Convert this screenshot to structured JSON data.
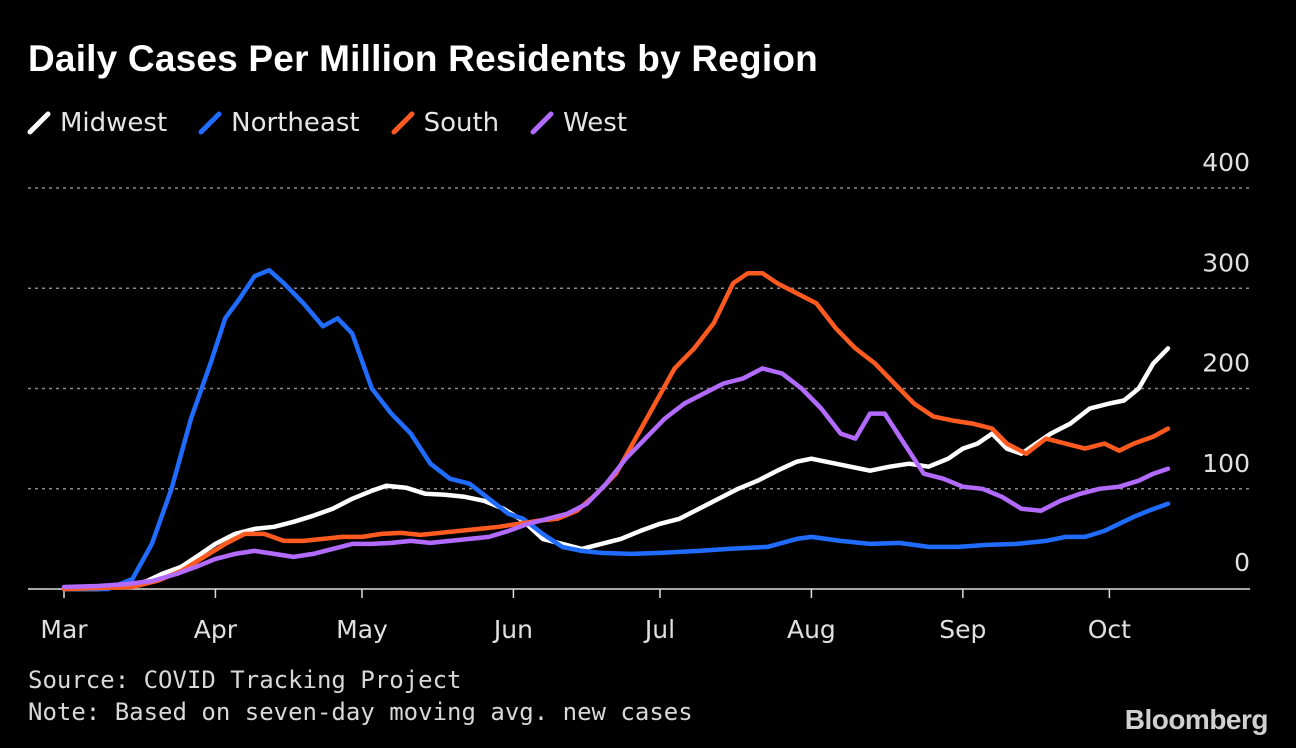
{
  "chart_data": {
    "type": "line",
    "title": "Daily Cases Per Million Residents by Region",
    "xlabel": "",
    "ylabel": "",
    "x_axis": {
      "start": "2020-03-01",
      "end": "2020-10-13",
      "ticks": [
        "Mar",
        "Apr",
        "May",
        "Jun",
        "Jul",
        "Aug",
        "Sep",
        "Oct"
      ],
      "tick_dates": [
        "2020-03-01",
        "2020-04-01",
        "2020-05-01",
        "2020-06-01",
        "2020-07-01",
        "2020-08-01",
        "2020-09-01",
        "2020-10-01"
      ]
    },
    "y_axis": {
      "ylim": [
        0,
        400
      ],
      "ticks": [
        0,
        100,
        200,
        300,
        400
      ],
      "position": "right",
      "grid": "dotted"
    },
    "legend": {
      "placement": "top-left"
    },
    "series": [
      {
        "name": "Midwest",
        "color": "#ffffff",
        "points": [
          [
            "2020-03-01",
            0
          ],
          [
            "2020-03-08",
            0
          ],
          [
            "2020-03-15",
            4
          ],
          [
            "2020-03-18",
            8
          ],
          [
            "2020-03-21",
            15
          ],
          [
            "2020-03-25",
            22
          ],
          [
            "2020-03-29",
            35
          ],
          [
            "2020-04-01",
            45
          ],
          [
            "2020-04-05",
            55
          ],
          [
            "2020-04-09",
            60
          ],
          [
            "2020-04-13",
            62
          ],
          [
            "2020-04-17",
            67
          ],
          [
            "2020-04-21",
            73
          ],
          [
            "2020-04-25",
            80
          ],
          [
            "2020-04-29",
            90
          ],
          [
            "2020-05-03",
            98
          ],
          [
            "2020-05-06",
            103
          ],
          [
            "2020-05-10",
            101
          ],
          [
            "2020-05-14",
            95
          ],
          [
            "2020-05-18",
            94
          ],
          [
            "2020-05-22",
            92
          ],
          [
            "2020-05-26",
            88
          ],
          [
            "2020-05-30",
            80
          ],
          [
            "2020-06-03",
            68
          ],
          [
            "2020-06-07",
            50
          ],
          [
            "2020-06-11",
            45
          ],
          [
            "2020-06-15",
            40
          ],
          [
            "2020-06-19",
            45
          ],
          [
            "2020-06-23",
            50
          ],
          [
            "2020-06-27",
            58
          ],
          [
            "2020-07-01",
            65
          ],
          [
            "2020-07-05",
            70
          ],
          [
            "2020-07-09",
            80
          ],
          [
            "2020-07-13",
            90
          ],
          [
            "2020-07-17",
            100
          ],
          [
            "2020-07-21",
            108
          ],
          [
            "2020-07-25",
            118
          ],
          [
            "2020-07-29",
            127
          ],
          [
            "2020-08-01",
            130
          ],
          [
            "2020-08-05",
            126
          ],
          [
            "2020-08-09",
            122
          ],
          [
            "2020-08-13",
            118
          ],
          [
            "2020-08-17",
            122
          ],
          [
            "2020-08-21",
            125
          ],
          [
            "2020-08-25",
            122
          ],
          [
            "2020-08-29",
            130
          ],
          [
            "2020-09-01",
            140
          ],
          [
            "2020-09-04",
            145
          ],
          [
            "2020-09-07",
            155
          ],
          [
            "2020-09-10",
            140
          ],
          [
            "2020-09-13",
            135
          ],
          [
            "2020-09-16",
            145
          ],
          [
            "2020-09-19",
            155
          ],
          [
            "2020-09-23",
            165
          ],
          [
            "2020-09-27",
            180
          ],
          [
            "2020-10-01",
            185
          ],
          [
            "2020-10-04",
            188
          ],
          [
            "2020-10-07",
            200
          ],
          [
            "2020-10-10",
            225
          ],
          [
            "2020-10-13",
            240
          ]
        ]
      },
      {
        "name": "Northeast",
        "color": "#1f6cff",
        "points": [
          [
            "2020-03-01",
            0
          ],
          [
            "2020-03-10",
            0
          ],
          [
            "2020-03-15",
            10
          ],
          [
            "2020-03-19",
            45
          ],
          [
            "2020-03-23",
            100
          ],
          [
            "2020-03-27",
            170
          ],
          [
            "2020-03-31",
            225
          ],
          [
            "2020-04-03",
            270
          ],
          [
            "2020-04-06",
            290
          ],
          [
            "2020-04-09",
            312
          ],
          [
            "2020-04-12",
            318
          ],
          [
            "2020-04-15",
            305
          ],
          [
            "2020-04-19",
            285
          ],
          [
            "2020-04-23",
            262
          ],
          [
            "2020-04-26",
            270
          ],
          [
            "2020-04-29",
            255
          ],
          [
            "2020-05-03",
            200
          ],
          [
            "2020-05-07",
            175
          ],
          [
            "2020-05-11",
            155
          ],
          [
            "2020-05-15",
            125
          ],
          [
            "2020-05-19",
            110
          ],
          [
            "2020-05-23",
            105
          ],
          [
            "2020-05-27",
            90
          ],
          [
            "2020-05-31",
            75
          ],
          [
            "2020-06-03",
            70
          ],
          [
            "2020-06-07",
            55
          ],
          [
            "2020-06-11",
            42
          ],
          [
            "2020-06-15",
            38
          ],
          [
            "2020-06-19",
            36
          ],
          [
            "2020-06-25",
            35
          ],
          [
            "2020-07-01",
            36
          ],
          [
            "2020-07-09",
            38
          ],
          [
            "2020-07-15",
            40
          ],
          [
            "2020-07-23",
            42
          ],
          [
            "2020-07-29",
            50
          ],
          [
            "2020-08-01",
            52
          ],
          [
            "2020-08-07",
            48
          ],
          [
            "2020-08-13",
            45
          ],
          [
            "2020-08-19",
            46
          ],
          [
            "2020-08-25",
            42
          ],
          [
            "2020-08-31",
            42
          ],
          [
            "2020-09-06",
            44
          ],
          [
            "2020-09-12",
            45
          ],
          [
            "2020-09-18",
            48
          ],
          [
            "2020-09-22",
            52
          ],
          [
            "2020-09-26",
            52
          ],
          [
            "2020-09-30",
            58
          ],
          [
            "2020-10-03",
            65
          ],
          [
            "2020-10-06",
            72
          ],
          [
            "2020-10-09",
            78
          ],
          [
            "2020-10-13",
            85
          ]
        ]
      },
      {
        "name": "South",
        "color": "#ff5a1f",
        "points": [
          [
            "2020-03-01",
            0
          ],
          [
            "2020-03-15",
            2
          ],
          [
            "2020-03-20",
            8
          ],
          [
            "2020-03-25",
            18
          ],
          [
            "2020-03-29",
            30
          ],
          [
            "2020-04-03",
            45
          ],
          [
            "2020-04-07",
            55
          ],
          [
            "2020-04-11",
            55
          ],
          [
            "2020-04-15",
            48
          ],
          [
            "2020-04-19",
            48
          ],
          [
            "2020-04-23",
            50
          ],
          [
            "2020-04-27",
            52
          ],
          [
            "2020-05-01",
            52
          ],
          [
            "2020-05-05",
            55
          ],
          [
            "2020-05-09",
            56
          ],
          [
            "2020-05-13",
            54
          ],
          [
            "2020-05-17",
            56
          ],
          [
            "2020-05-21",
            58
          ],
          [
            "2020-05-25",
            60
          ],
          [
            "2020-05-29",
            62
          ],
          [
            "2020-06-02",
            65
          ],
          [
            "2020-06-06",
            68
          ],
          [
            "2020-06-10",
            70
          ],
          [
            "2020-06-14",
            78
          ],
          [
            "2020-06-18",
            95
          ],
          [
            "2020-06-22",
            115
          ],
          [
            "2020-06-26",
            150
          ],
          [
            "2020-06-30",
            185
          ],
          [
            "2020-07-04",
            220
          ],
          [
            "2020-07-08",
            240
          ],
          [
            "2020-07-12",
            265
          ],
          [
            "2020-07-16",
            305
          ],
          [
            "2020-07-19",
            315
          ],
          [
            "2020-07-22",
            315
          ],
          [
            "2020-07-25",
            305
          ],
          [
            "2020-07-29",
            295
          ],
          [
            "2020-08-02",
            285
          ],
          [
            "2020-08-06",
            260
          ],
          [
            "2020-08-10",
            240
          ],
          [
            "2020-08-14",
            225
          ],
          [
            "2020-08-18",
            205
          ],
          [
            "2020-08-22",
            185
          ],
          [
            "2020-08-26",
            172
          ],
          [
            "2020-08-30",
            168
          ],
          [
            "2020-09-03",
            165
          ],
          [
            "2020-09-07",
            160
          ],
          [
            "2020-09-10",
            145
          ],
          [
            "2020-09-14",
            135
          ],
          [
            "2020-09-18",
            150
          ],
          [
            "2020-09-22",
            145
          ],
          [
            "2020-09-26",
            140
          ],
          [
            "2020-09-30",
            145
          ],
          [
            "2020-10-03",
            138
          ],
          [
            "2020-10-06",
            145
          ],
          [
            "2020-10-10",
            152
          ],
          [
            "2020-10-13",
            160
          ]
        ]
      },
      {
        "name": "West",
        "color": "#b36bff",
        "points": [
          [
            "2020-03-01",
            2
          ],
          [
            "2020-03-08",
            3
          ],
          [
            "2020-03-14",
            5
          ],
          [
            "2020-03-19",
            8
          ],
          [
            "2020-03-24",
            15
          ],
          [
            "2020-03-28",
            22
          ],
          [
            "2020-04-01",
            30
          ],
          [
            "2020-04-05",
            35
          ],
          [
            "2020-04-09",
            38
          ],
          [
            "2020-04-13",
            35
          ],
          [
            "2020-04-17",
            32
          ],
          [
            "2020-04-21",
            35
          ],
          [
            "2020-04-25",
            40
          ],
          [
            "2020-04-29",
            45
          ],
          [
            "2020-05-03",
            45
          ],
          [
            "2020-05-07",
            46
          ],
          [
            "2020-05-11",
            48
          ],
          [
            "2020-05-15",
            46
          ],
          [
            "2020-05-19",
            48
          ],
          [
            "2020-05-23",
            50
          ],
          [
            "2020-05-27",
            52
          ],
          [
            "2020-05-31",
            58
          ],
          [
            "2020-06-04",
            65
          ],
          [
            "2020-06-08",
            70
          ],
          [
            "2020-06-12",
            75
          ],
          [
            "2020-06-16",
            85
          ],
          [
            "2020-06-20",
            105
          ],
          [
            "2020-06-24",
            130
          ],
          [
            "2020-06-28",
            150
          ],
          [
            "2020-07-02",
            170
          ],
          [
            "2020-07-06",
            185
          ],
          [
            "2020-07-10",
            195
          ],
          [
            "2020-07-14",
            205
          ],
          [
            "2020-07-18",
            210
          ],
          [
            "2020-07-22",
            220
          ],
          [
            "2020-07-26",
            215
          ],
          [
            "2020-07-30",
            200
          ],
          [
            "2020-08-03",
            180
          ],
          [
            "2020-08-07",
            155
          ],
          [
            "2020-08-10",
            150
          ],
          [
            "2020-08-13",
            175
          ],
          [
            "2020-08-16",
            175
          ],
          [
            "2020-08-20",
            145
          ],
          [
            "2020-08-24",
            115
          ],
          [
            "2020-08-28",
            110
          ],
          [
            "2020-09-01",
            102
          ],
          [
            "2020-09-05",
            100
          ],
          [
            "2020-09-09",
            92
          ],
          [
            "2020-09-13",
            80
          ],
          [
            "2020-09-17",
            78
          ],
          [
            "2020-09-21",
            88
          ],
          [
            "2020-09-25",
            95
          ],
          [
            "2020-09-29",
            100
          ],
          [
            "2020-10-03",
            102
          ],
          [
            "2020-10-07",
            108
          ],
          [
            "2020-10-10",
            115
          ],
          [
            "2020-10-13",
            120
          ]
        ]
      }
    ]
  },
  "footer": {
    "source": "Source: COVID Tracking Project",
    "note": "Note: Based on seven-day moving avg. new cases",
    "brand": "Bloomberg"
  }
}
